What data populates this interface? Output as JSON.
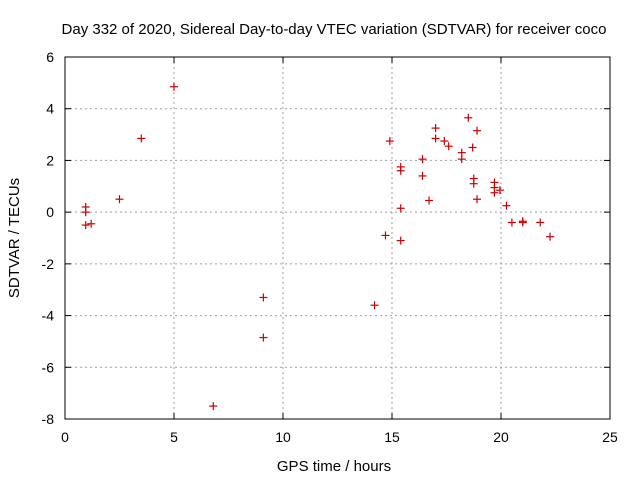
{
  "chart_data": {
    "type": "scatter",
    "title": "Day 332 of 2020, Sidereal Day-to-day VTEC variation (SDTVAR) for receiver coco",
    "xlabel": "GPS time / hours",
    "ylabel": "SDTVAR / TECUs",
    "xlim": [
      0,
      25
    ],
    "ylim": [
      -8,
      6
    ],
    "xticks": [
      0,
      5,
      10,
      15,
      20,
      25
    ],
    "yticks": [
      -8,
      -6,
      -4,
      -2,
      0,
      2,
      4,
      6
    ],
    "grid": true,
    "marker": "+",
    "color": "#cc0000",
    "series": [
      {
        "name": "SDTVAR",
        "points": [
          [
            0.95,
            0.2
          ],
          [
            0.95,
            0.0
          ],
          [
            0.95,
            -0.5
          ],
          [
            1.2,
            -0.45
          ],
          [
            2.5,
            0.5
          ],
          [
            3.5,
            2.85
          ],
          [
            5.0,
            4.85
          ],
          [
            6.8,
            -7.5
          ],
          [
            9.1,
            -3.3
          ],
          [
            9.1,
            -4.85
          ],
          [
            14.2,
            -3.6
          ],
          [
            14.7,
            -0.9
          ],
          [
            14.9,
            2.75
          ],
          [
            15.4,
            1.75
          ],
          [
            15.4,
            1.6
          ],
          [
            15.4,
            0.15
          ],
          [
            15.4,
            -1.1
          ],
          [
            16.4,
            2.05
          ],
          [
            16.4,
            1.4
          ],
          [
            16.7,
            0.45
          ],
          [
            17.0,
            3.25
          ],
          [
            17.0,
            2.85
          ],
          [
            17.4,
            2.75
          ],
          [
            17.6,
            2.55
          ],
          [
            18.2,
            2.3
          ],
          [
            18.2,
            2.05
          ],
          [
            18.5,
            3.65
          ],
          [
            18.7,
            2.5
          ],
          [
            18.75,
            1.3
          ],
          [
            18.75,
            1.1
          ],
          [
            18.9,
            3.15
          ],
          [
            18.9,
            0.5
          ],
          [
            19.7,
            1.15
          ],
          [
            19.7,
            0.95
          ],
          [
            19.7,
            0.75
          ],
          [
            19.95,
            0.85
          ],
          [
            20.25,
            0.25
          ],
          [
            20.5,
            -0.4
          ],
          [
            21.0,
            -0.35
          ],
          [
            21.0,
            -0.4
          ],
          [
            21.8,
            -0.4
          ],
          [
            22.25,
            -0.95
          ]
        ]
      }
    ]
  }
}
